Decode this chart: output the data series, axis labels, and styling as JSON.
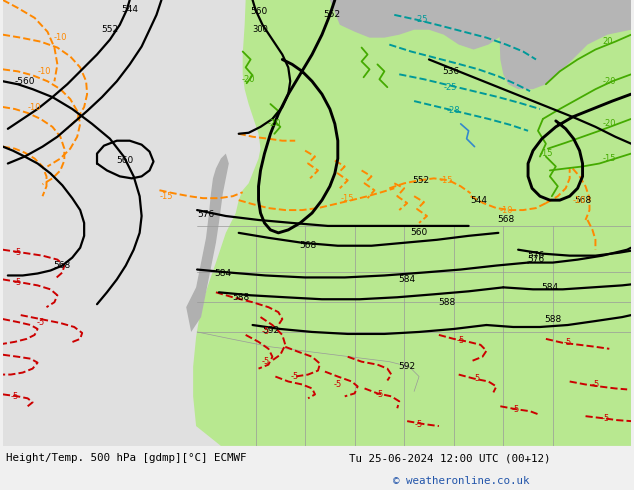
{
  "bottom_left_label": "Height/Temp. 500 hPa [gdmp][°C] ECMWF",
  "bottom_right_label": "Tu 25-06-2024 12:00 UTC (00+12)",
  "copyright": "© weatheronline.co.uk",
  "bg_color": "#e0e0e0",
  "green_fill": "#b8e890",
  "gray_land": "#c0c0c0",
  "fig_width": 6.34,
  "fig_height": 4.9,
  "dpi": 100,
  "black_lw": 1.6,
  "orange_color": "#ff8800",
  "red_color": "#cc0000",
  "green_color": "#44aa00",
  "cyan_color": "#009999",
  "blue_color": "#3388cc"
}
